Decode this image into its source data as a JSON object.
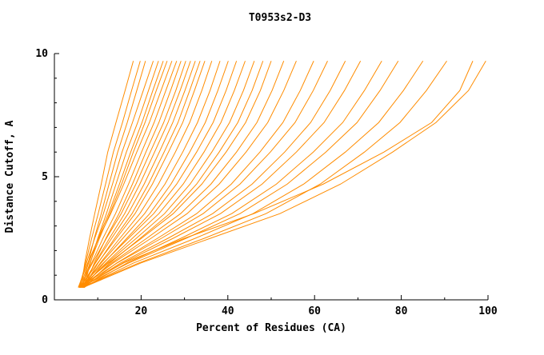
{
  "chart_data": {
    "type": "line",
    "title": "T0953s2-D3",
    "xlabel": "Percent of Residues (CA)",
    "ylabel": "Distance Cutoff, A",
    "xlim": [
      0,
      100
    ],
    "ylim": [
      0,
      10
    ],
    "grid": false,
    "legend": "none",
    "curve_color": "#ff8c00",
    "axis_color": "#000000",
    "background_color": "#ffffff",
    "x_major_ticks": [
      20,
      40,
      60,
      80,
      100
    ],
    "x_tick_labels": [
      "20",
      "40",
      "60",
      "80",
      "100"
    ],
    "x_minor_ticks": [
      10,
      30,
      50,
      70,
      90
    ],
    "y_major_ticks": [
      0,
      5,
      10
    ],
    "y_tick_labels": [
      "0",
      "5",
      "10"
    ],
    "y_minor_ticks": [
      1,
      2,
      3,
      4,
      6,
      7,
      8,
      9
    ],
    "y_levels": [
      0.5,
      1.5,
      2.5,
      3.5,
      4.7,
      6.0,
      7.2,
      8.5,
      9.7
    ],
    "series": [
      {
        "name": "m01",
        "x": [
          6.2,
          7.0,
          8.1,
          9.3,
          10.8,
          12.3,
          14.2,
          16.3,
          18.2
        ]
      },
      {
        "name": "m02",
        "x": [
          5.8,
          7.2,
          8.6,
          10.1,
          11.8,
          13.6,
          15.7,
          17.8,
          19.8
        ]
      },
      {
        "name": "m03",
        "x": [
          6.5,
          7.8,
          9.2,
          10.8,
          12.6,
          14.6,
          16.8,
          19.0,
          21.0
        ]
      },
      {
        "name": "m04",
        "x": [
          5.6,
          7.4,
          9.3,
          11.3,
          13.4,
          15.6,
          18.0,
          20.5,
          22.8
        ]
      },
      {
        "name": "m05",
        "x": [
          6.8,
          8.3,
          10.0,
          12.0,
          14.2,
          16.6,
          19.2,
          21.7,
          24.0
        ]
      },
      {
        "name": "m06",
        "x": [
          5.9,
          7.9,
          10.1,
          12.5,
          15.0,
          17.6,
          20.2,
          22.7,
          25.1
        ]
      },
      {
        "name": "m07",
        "x": [
          6.3,
          8.2,
          10.4,
          12.8,
          15.5,
          18.2,
          20.9,
          23.5,
          26.0
        ]
      },
      {
        "name": "m08",
        "x": [
          5.5,
          7.7,
          10.2,
          13.0,
          16.0,
          19.0,
          21.9,
          24.6,
          27.1
        ]
      },
      {
        "name": "m09",
        "x": [
          6.1,
          8.6,
          11.2,
          14.1,
          17.1,
          20.1,
          23.0,
          25.7,
          28.2
        ]
      },
      {
        "name": "m10",
        "x": [
          6.9,
          9.2,
          11.9,
          14.9,
          18.0,
          21.1,
          24.1,
          26.8,
          29.2
        ]
      },
      {
        "name": "m11",
        "x": [
          5.7,
          8.8,
          12.0,
          15.4,
          18.8,
          22.1,
          25.2,
          28.0,
          30.3
        ]
      },
      {
        "name": "m12",
        "x": [
          6.4,
          9.4,
          12.7,
          16.2,
          19.7,
          23.1,
          26.2,
          29.0,
          31.4
        ]
      },
      {
        "name": "m13",
        "x": [
          6.0,
          9.5,
          13.2,
          17.0,
          20.7,
          24.2,
          27.3,
          30.1,
          32.5
        ]
      },
      {
        "name": "m14",
        "x": [
          6.7,
          10.1,
          13.9,
          17.9,
          21.7,
          25.3,
          28.5,
          31.2,
          33.6
        ]
      },
      {
        "name": "m15",
        "x": [
          5.8,
          10.0,
          14.3,
          18.6,
          22.6,
          26.3,
          29.6,
          32.3,
          34.7
        ]
      },
      {
        "name": "m16",
        "x": [
          6.5,
          10.6,
          15.1,
          19.7,
          24.0,
          27.9,
          31.2,
          34.0,
          36.3
        ]
      },
      {
        "name": "m17",
        "x": [
          6.1,
          10.8,
          15.8,
          20.8,
          25.5,
          29.6,
          33.0,
          35.9,
          38.2
        ]
      },
      {
        "name": "m18",
        "x": [
          6.8,
          11.4,
          16.7,
          22.0,
          26.9,
          31.2,
          34.8,
          37.7,
          40.1
        ]
      },
      {
        "name": "m19",
        "x": [
          5.9,
          11.3,
          17.1,
          22.9,
          28.2,
          32.8,
          36.6,
          39.6,
          42.0
        ]
      },
      {
        "name": "m20",
        "x": [
          6.4,
          11.9,
          18.0,
          24.1,
          29.7,
          34.5,
          38.4,
          41.5,
          44.0
        ]
      },
      {
        "name": "m21",
        "x": [
          6.0,
          12.2,
          18.9,
          25.4,
          31.3,
          36.3,
          40.4,
          43.6,
          46.1
        ]
      },
      {
        "name": "m22",
        "x": [
          6.9,
          12.8,
          19.8,
          26.6,
          32.8,
          38.0,
          42.3,
          45.6,
          48.1
        ]
      },
      {
        "name": "m23",
        "x": [
          5.7,
          12.5,
          20.1,
          27.4,
          34.0,
          39.6,
          44.1,
          47.5,
          50.0
        ]
      },
      {
        "name": "m24",
        "x": [
          6.3,
          13.2,
          21.3,
          29.1,
          36.1,
          42.0,
          46.7,
          50.2,
          52.9
        ]
      },
      {
        "name": "m25",
        "x": [
          6.0,
          13.6,
          22.3,
          30.6,
          38.0,
          44.2,
          49.2,
          52.9,
          55.8
        ]
      },
      {
        "name": "m26",
        "x": [
          6.7,
          14.4,
          23.8,
          32.8,
          40.8,
          47.4,
          52.7,
          56.7,
          59.8
        ]
      },
      {
        "name": "m27",
        "x": [
          5.8,
          14.5,
          24.7,
          34.3,
          42.8,
          49.8,
          55.5,
          59.7,
          63.0
        ]
      },
      {
        "name": "m28",
        "x": [
          6.4,
          15.3,
          26.2,
          36.5,
          45.6,
          53.1,
          59.1,
          63.6,
          67.1
        ]
      },
      {
        "name": "m29",
        "x": [
          6.1,
          15.8,
          27.4,
          38.3,
          47.9,
          55.8,
          62.2,
          66.9,
          70.6
        ]
      },
      {
        "name": "m30",
        "x": [
          6.8,
          16.8,
          29.2,
          40.9,
          51.2,
          59.7,
          66.5,
          71.5,
          75.5
        ]
      },
      {
        "name": "m31",
        "x": [
          5.9,
          17.2,
          30.4,
          42.8,
          53.7,
          62.6,
          69.8,
          75.1,
          79.3
        ]
      },
      {
        "name": "m32",
        "x": [
          6.5,
          18.3,
          32.5,
          45.8,
          57.5,
          67.1,
          74.8,
          80.5,
          85.0
        ]
      },
      {
        "name": "m33",
        "x": [
          6.2,
          19.5,
          34.6,
          48.8,
          61.3,
          71.5,
          79.7,
          85.8,
          90.5
        ]
      },
      {
        "name": "m34",
        "x": [
          6.0,
          16.0,
          30.0,
          46.0,
          62.0,
          76.0,
          87.0,
          93.5,
          96.5
        ]
      },
      {
        "name": "m35",
        "x": [
          6.6,
          20.0,
          36.0,
          52.0,
          66.0,
          78.0,
          88.0,
          95.5,
          99.5
        ]
      }
    ]
  }
}
